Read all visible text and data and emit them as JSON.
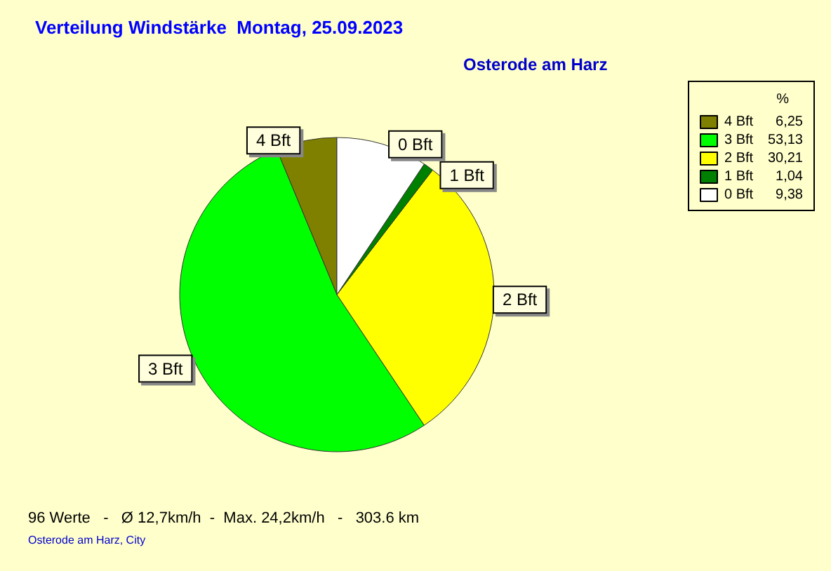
{
  "chart_data": {
    "type": "pie",
    "title": "Verteilung Windstärke  Montag, 25.09.2023",
    "subtitle": "Osterode am Harz",
    "legend_title": "%",
    "legend": "top right",
    "categories": [
      "4 Bft",
      "3 Bft",
      "2 Bft",
      "1 Bft",
      "0 Bft"
    ],
    "values": [
      6.25,
      53.13,
      30.21,
      1.04,
      9.38
    ],
    "value_labels": [
      "6,25",
      "53,13",
      "30,21",
      "1,04",
      "9,38"
    ],
    "colors": [
      "#808000",
      "#00ff00",
      "#ffff00",
      "#008000",
      "#ffffff"
    ],
    "annotations": [
      "96 Werte   -   Ø 12,7km/h  -  Max. 24,2km/h   -   303.6 km",
      "Osterode am Harz, City"
    ]
  }
}
